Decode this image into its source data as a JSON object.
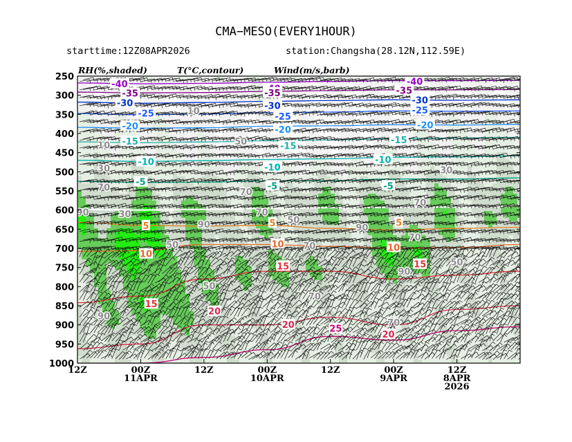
{
  "chart_data": {
    "type": "time-height cross section",
    "title": "CMA−MESO(EVERY1HOUR)",
    "starttime": "starttime:12Z08APR2026",
    "station": "station:Changsha(28.12N,112.59E)",
    "header_labels": {
      "rh": "RH(%,shaded)",
      "temp": "T(°C,contour)",
      "wind": "Wind(m/s,barb)"
    },
    "y_axis": {
      "ticks": [
        250,
        300,
        350,
        400,
        450,
        500,
        550,
        600,
        650,
        700,
        750,
        800,
        850,
        900,
        950,
        1000
      ],
      "range": [
        250,
        1000
      ],
      "unit": "hPa"
    },
    "x_axis": {
      "range_hours": [
        -12,
        72
      ],
      "ticks": [
        {
          "hours": 72,
          "lines": [
            "12Z"
          ]
        },
        {
          "hours": 60,
          "lines": [
            "00Z",
            "11APR"
          ]
        },
        {
          "hours": 48,
          "lines": [
            "12Z"
          ]
        },
        {
          "hours": 36,
          "lines": [
            "00Z",
            "10APR"
          ]
        },
        {
          "hours": 24,
          "lines": [
            "12Z"
          ]
        },
        {
          "hours": 12,
          "lines": [
            "00Z",
            "9APR"
          ]
        },
        {
          "hours": 0,
          "lines": [
            "12Z",
            "8APR",
            "2026"
          ]
        }
      ]
    },
    "temperature_contours": [
      {
        "value": -40,
        "color": "#9900cc",
        "p": [
          268,
          270,
          269,
          266,
          264,
          262,
          262,
          261
        ]
      },
      {
        "value": -35,
        "color": "#800080",
        "p": [
          292,
          294,
          293,
          290,
          288,
          286,
          286,
          285
        ]
      },
      {
        "value": -30,
        "color": "#0033cc",
        "p": [
          318,
          321,
          319,
          316,
          314,
          312,
          313,
          312
        ]
      },
      {
        "value": -25,
        "color": "#1a5bff",
        "p": [
          348,
          351,
          349,
          346,
          344,
          341,
          342,
          341
        ]
      },
      {
        "value": -20,
        "color": "#1e90ff",
        "p": [
          384,
          386,
          385,
          381,
          380,
          377,
          378,
          376
        ]
      },
      {
        "value": -15,
        "color": "#20b2aa",
        "p": [
          422,
          424,
          422,
          419,
          417,
          413,
          412,
          410
        ]
      },
      {
        "value": -10,
        "color": "#00b3b3",
        "p": [
          470,
          473,
          471,
          468,
          466,
          462,
          461,
          458
        ]
      },
      {
        "value": -5,
        "color": "#00a080",
        "p": [
          525,
          528,
          527,
          524,
          523,
          519,
          519,
          516
        ]
      },
      {
        "value": 0,
        "color": "#ffffff",
        "p": [
          598,
          600,
          598,
          596,
          594,
          593,
          592,
          590
        ]
      },
      {
        "value": 5,
        "color": "#e67e22",
        "p": [
          632,
          640,
          642,
          640,
          648,
          652,
          648,
          645
        ]
      },
      {
        "value": 10,
        "color": "#e8662a",
        "p": [
          708,
          706,
          690,
          690,
          695,
          700,
          698,
          690
        ]
      },
      {
        "value": 15,
        "color": "#e0303a",
        "p": [
          842,
          825,
          780,
          760,
          760,
          780,
          770,
          760
        ]
      },
      {
        "value": 20,
        "color": "#d92b4f",
        "p": [
          962,
          950,
          900,
          900,
          880,
          900,
          860,
          850
        ]
      },
      {
        "value": 25,
        "color": "#cc0077",
        "p": [
          1000,
          1000,
          985,
          965,
          930,
          940,
          915,
          905
        ]
      }
    ],
    "temperature_labels": [
      {
        "text": "-40",
        "hours": 64,
        "p": 270
      },
      {
        "text": "-40",
        "hours": 35,
        "p": 282
      },
      {
        "text": "-40",
        "hours": 8,
        "p": 264
      },
      {
        "text": "-35",
        "hours": 62,
        "p": 294
      },
      {
        "text": "-35",
        "hours": 35,
        "p": 293
      },
      {
        "text": "-35",
        "hours": 10,
        "p": 287
      },
      {
        "text": "-30",
        "hours": 63,
        "p": 320
      },
      {
        "text": "-30",
        "hours": 35,
        "p": 327
      },
      {
        "text": "-30",
        "hours": 7,
        "p": 312
      },
      {
        "text": "-25",
        "hours": 59,
        "p": 347
      },
      {
        "text": "-25",
        "hours": 33,
        "p": 355
      },
      {
        "text": "-25",
        "hours": 7,
        "p": 339
      },
      {
        "text": "-20",
        "hours": 62,
        "p": 380
      },
      {
        "text": "-20",
        "hours": 33,
        "p": 389
      },
      {
        "text": "-20",
        "hours": 6,
        "p": 377
      },
      {
        "text": "-15",
        "hours": 62,
        "p": 420
      },
      {
        "text": "-15",
        "hours": 32,
        "p": 432
      },
      {
        "text": "-15",
        "hours": 11,
        "p": 416
      },
      {
        "text": "-10",
        "hours": 59,
        "p": 473
      },
      {
        "text": "-10",
        "hours": 35,
        "p": 488
      },
      {
        "text": "-10",
        "hours": 14,
        "p": 468
      },
      {
        "text": "-5",
        "hours": 60,
        "p": 526
      },
      {
        "text": "-5",
        "hours": 35,
        "p": 536
      },
      {
        "text": "-5",
        "hours": 13,
        "p": 536
      },
      {
        "text": "5",
        "hours": 59,
        "p": 640
      },
      {
        "text": "5",
        "hours": 35,
        "p": 633
      },
      {
        "text": "5",
        "hours": 11,
        "p": 632
      },
      {
        "text": "10",
        "hours": 59,
        "p": 714
      },
      {
        "text": "10",
        "hours": 34,
        "p": 688
      },
      {
        "text": "10",
        "hours": 12,
        "p": 697
      },
      {
        "text": "15",
        "hours": 58,
        "p": 845
      },
      {
        "text": "15",
        "hours": 33,
        "p": 746
      },
      {
        "text": "15",
        "hours": 7,
        "p": 741
      },
      {
        "text": "20",
        "hours": 46,
        "p": 864
      },
      {
        "text": "20",
        "hours": 32,
        "p": 899
      },
      {
        "text": "20",
        "hours": 13,
        "p": 924
      },
      {
        "text": "25",
        "hours": 23,
        "p": 909
      }
    ],
    "rh_labels": [
      {
        "text": "10",
        "hours": 50,
        "p": 340
      },
      {
        "text": "10",
        "hours": 67,
        "p": 430
      },
      {
        "text": "30",
        "hours": 67,
        "p": 490
      },
      {
        "text": "70",
        "hours": 67,
        "p": 540
      },
      {
        "text": "90",
        "hours": 71,
        "p": 605
      },
      {
        "text": "30",
        "hours": 63,
        "p": 610
      },
      {
        "text": "50",
        "hours": 41,
        "p": 420
      },
      {
        "text": "70",
        "hours": 40,
        "p": 552
      },
      {
        "text": "70",
        "hours": 37,
        "p": 605
      },
      {
        "text": "50",
        "hours": 31,
        "p": 625
      },
      {
        "text": "90",
        "hours": 48,
        "p": 637
      },
      {
        "text": "50",
        "hours": 54,
        "p": 690
      },
      {
        "text": "50",
        "hours": 47,
        "p": 798
      },
      {
        "text": "90",
        "hours": 67,
        "p": 876
      },
      {
        "text": "70",
        "hours": 28,
        "p": 693
      },
      {
        "text": "90",
        "hours": 18,
        "p": 645
      },
      {
        "text": "70",
        "hours": 8,
        "p": 670
      },
      {
        "text": "70",
        "hours": 7,
        "p": 580
      },
      {
        "text": "30",
        "hours": 2,
        "p": 495
      },
      {
        "text": "90",
        "hours": 10,
        "p": 760
      },
      {
        "text": "70",
        "hours": 12,
        "p": 893
      },
      {
        "text": "50",
        "hours": 0,
        "p": 735
      },
      {
        "text": "70",
        "hours": 27,
        "p": 825
      }
    ],
    "rh_levels": [
      {
        "min": 10,
        "color": "#f2f2f2"
      },
      {
        "min": 30,
        "color": "#e6efe3"
      },
      {
        "min": 50,
        "color": "#d0dccd"
      },
      {
        "min": 70,
        "color": "#66cc5a"
      },
      {
        "min": 90,
        "color": "#22ee11"
      }
    ],
    "wind_units": "m/s"
  }
}
